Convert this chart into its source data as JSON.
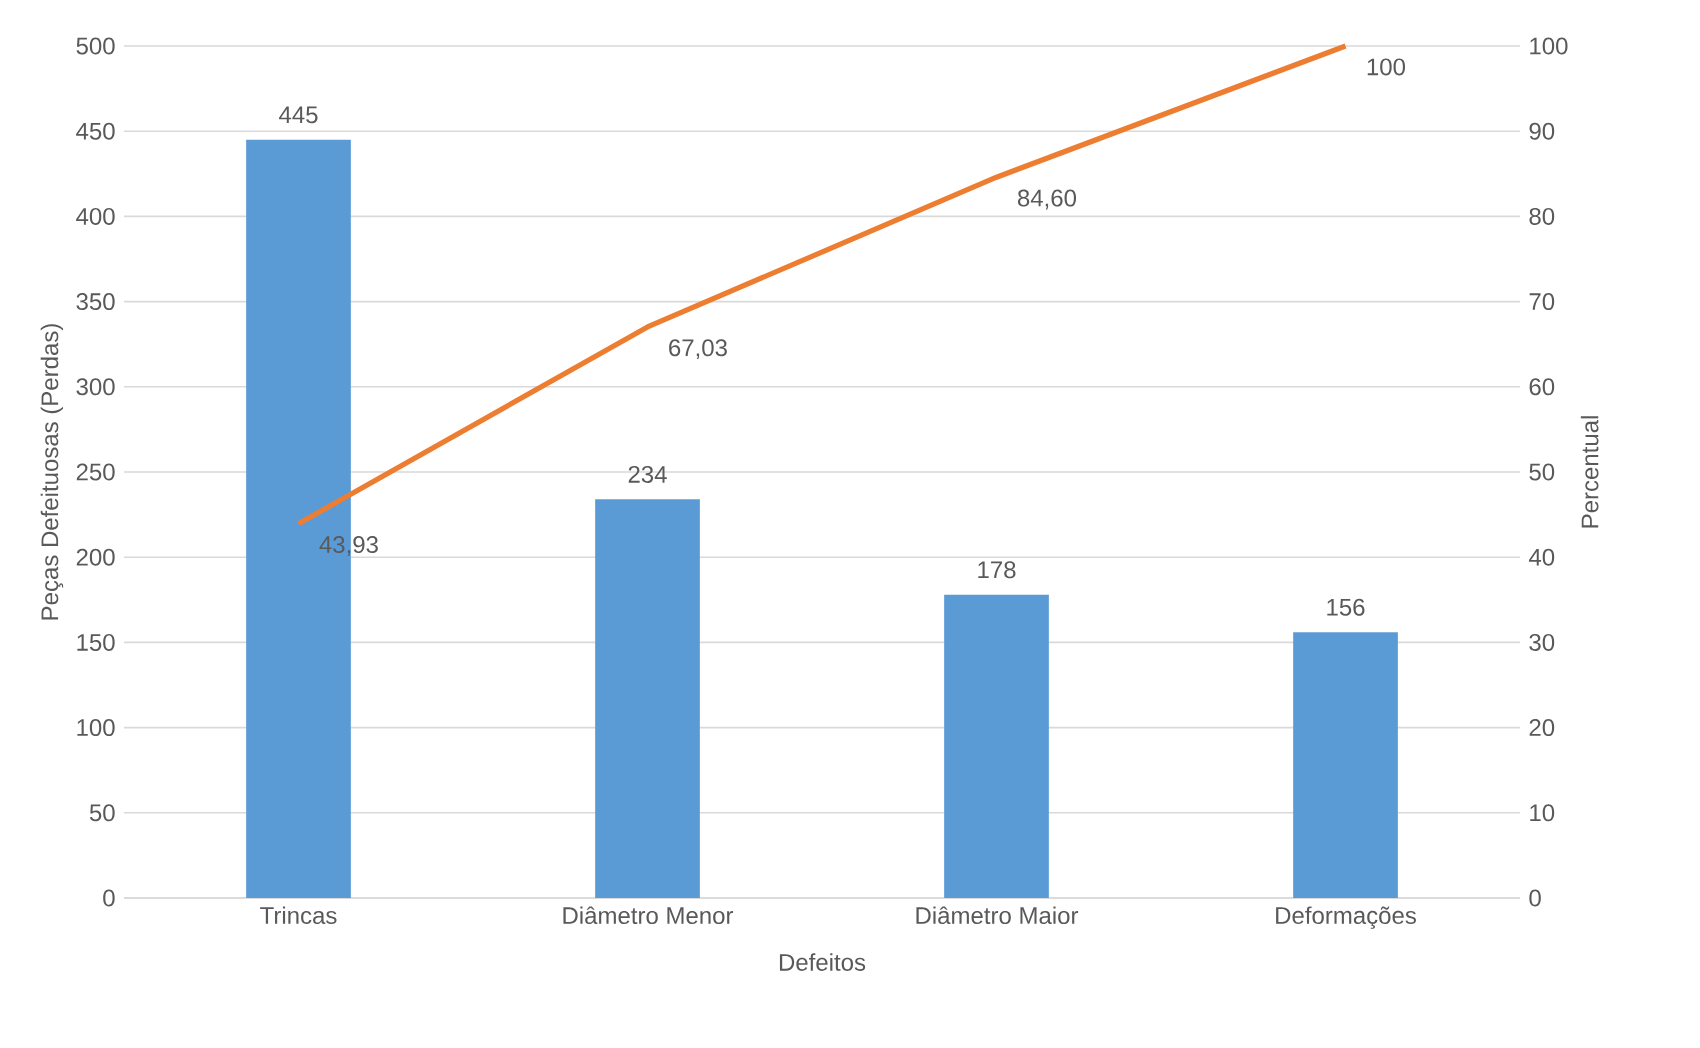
{
  "chart_data": {
    "type": "bar",
    "xlabel": "Defeitos",
    "ylabel": "Peças Defeituosas (Perdas)",
    "y2label": "Percentual",
    "categories": [
      "Trincas",
      "Diâmetro Menor",
      "Diâmetro Maior",
      "Deformações"
    ],
    "series": [
      {
        "color": "#5b9bd5",
        "values": [
          445,
          234,
          178,
          156
        ],
        "value_labels": [
          "445",
          "234",
          "178",
          "156"
        ]
      },
      {
        "type": "line",
        "axis": "y2",
        "color": "#ed7d31",
        "values": [
          43.93,
          67.03,
          84.6,
          100
        ],
        "value_labels": [
          "43,93",
          "67,03",
          "84,60",
          "100"
        ]
      }
    ],
    "ylim": [
      0,
      500
    ],
    "yticks": [
      0,
      50,
      100,
      150,
      200,
      250,
      300,
      350,
      400,
      450,
      500
    ],
    "y2lim": [
      0,
      100
    ],
    "y2ticks": [
      0,
      10,
      20,
      30,
      40,
      50,
      60,
      70,
      80,
      90,
      100
    ],
    "grid": "y"
  }
}
